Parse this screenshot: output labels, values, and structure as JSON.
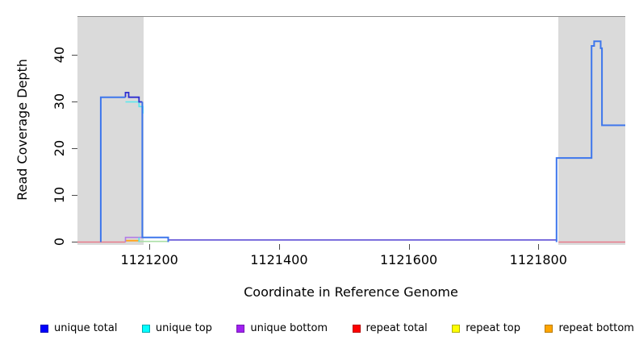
{
  "figure": {
    "x_axis_title": "Coordinate in Reference Genome",
    "y_axis_title": "Read Coverage Depth"
  },
  "chart_data": {
    "type": "line",
    "title": "",
    "xlabel": "Coordinate in Reference Genome",
    "ylabel": "Read Coverage Depth",
    "grid": false,
    "legend_position": "bottom",
    "x_range": [
      1121089,
      1121934
    ],
    "y_range": [
      -0.6,
      48.2
    ],
    "x_ticks": [
      1121200,
      1121400,
      1121600,
      1121800
    ],
    "y_ticks": [
      0,
      10,
      20,
      30,
      40
    ],
    "frame_top_color": "#8a8a8a",
    "shaded_region_color": "#dadada",
    "shaded_regions": [
      {
        "name": "left-gray-region",
        "x0": 1121089,
        "x1": 1121191
      },
      {
        "name": "right-gray-region",
        "x0": 1121831,
        "x1": 1121934
      }
    ],
    "series": [
      {
        "name": "repeat-total-left-baseline",
        "color": "#e8798a",
        "width": 1.6,
        "points": [
          [
            1121089,
            0
          ],
          [
            1121163,
            0
          ]
        ]
      },
      {
        "name": "repeat-total-right-baseline",
        "color": "#e8798a",
        "width": 1.6,
        "points": [
          [
            1121831,
            0
          ],
          [
            1121934,
            0
          ]
        ]
      },
      {
        "name": "repeat-bottom-segment",
        "color": "#ffa51e",
        "width": 2,
        "points": [
          [
            1121163,
            0.3
          ],
          [
            1121184,
            0.3
          ]
        ]
      },
      {
        "name": "repeat-top-overlap-segment",
        "color": "#aadfa5",
        "width": 1.6,
        "points": [
          [
            1121184,
            0.15
          ],
          [
            1121229,
            0.15
          ]
        ]
      },
      {
        "name": "unique-mid-baseline",
        "color": "#6a5bd8",
        "width": 1.8,
        "points": [
          [
            1121229,
            0.45
          ],
          [
            1121829,
            0.45
          ]
        ]
      },
      {
        "name": "unique-bottom-bump",
        "color": "#b27be6",
        "width": 1.6,
        "points": [
          [
            1121163,
            0
          ],
          [
            1121163,
            1
          ],
          [
            1121188,
            1
          ]
        ]
      },
      {
        "name": "unique-top-drop",
        "color": "#56e8ee",
        "width": 1.6,
        "points": [
          [
            1121163,
            30
          ],
          [
            1121184,
            30
          ],
          [
            1121184,
            29
          ],
          [
            1121190,
            29
          ],
          [
            1121190,
            27.5
          ]
        ]
      },
      {
        "name": "unique-top-tick",
        "color": "#56e8ee",
        "width": 1.6,
        "points": [
          [
            1121184,
            1
          ],
          [
            1121184,
            0
          ]
        ]
      },
      {
        "name": "unique-total-peak-top",
        "color": "#2d2dd0",
        "width": 1.8,
        "points": [
          [
            1121163,
            31
          ],
          [
            1121163,
            32
          ],
          [
            1121168,
            32
          ],
          [
            1121168,
            31
          ],
          [
            1121184,
            31
          ],
          [
            1121184,
            30
          ],
          [
            1121189,
            30
          ]
        ]
      },
      {
        "name": "unique-total-left-peak",
        "color": "#3d76ec",
        "width": 2,
        "points": [
          [
            1121125,
            0
          ],
          [
            1121125,
            31
          ],
          [
            1121163,
            31
          ]
        ]
      },
      {
        "name": "unique-total-left-tail",
        "color": "#3d76ec",
        "width": 2,
        "points": [
          [
            1121189,
            30
          ],
          [
            1121189,
            1
          ],
          [
            1121229,
            1
          ],
          [
            1121229,
            0
          ]
        ]
      },
      {
        "name": "unique-total-right-peak",
        "color": "#3d76ec",
        "width": 2,
        "points": [
          [
            1121828,
            0
          ],
          [
            1121828,
            18
          ],
          [
            1121882,
            18
          ],
          [
            1121882,
            42
          ],
          [
            1121886,
            42
          ],
          [
            1121886,
            43
          ],
          [
            1121896,
            43
          ],
          [
            1121896,
            41.5
          ],
          [
            1121898,
            41.5
          ],
          [
            1121898,
            25
          ],
          [
            1121934,
            25
          ]
        ]
      }
    ],
    "legend": [
      {
        "label": "unique total",
        "fill": "#0000ff",
        "border": "#0000b8"
      },
      {
        "label": "unique top",
        "fill": "#00ffff",
        "border": "#00a8b0"
      },
      {
        "label": "unique bottom",
        "fill": "#a020f0",
        "border": "#7718b4"
      },
      {
        "label": "repeat total",
        "fill": "#ff0000",
        "border": "#b80000"
      },
      {
        "label": "repeat top",
        "fill": "#ffff00",
        "border": "#b0b000"
      },
      {
        "label": "repeat bottom",
        "fill": "#ffa500",
        "border": "#b87a00"
      }
    ]
  }
}
